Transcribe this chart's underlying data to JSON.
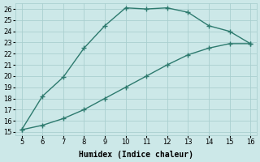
{
  "upper_x": [
    5,
    6,
    7,
    8,
    9,
    10,
    11,
    12,
    13,
    14,
    15,
    16
  ],
  "upper_y": [
    15.2,
    18.2,
    19.9,
    22.5,
    24.5,
    26.1,
    26.0,
    26.1,
    25.7,
    24.5,
    24.0,
    22.9
  ],
  "lower_x": [
    5,
    6,
    7,
    8,
    9,
    10,
    11,
    12,
    13,
    14,
    15,
    16
  ],
  "lower_y": [
    15.2,
    15.6,
    16.2,
    17.0,
    18.0,
    19.0,
    20.0,
    21.0,
    21.9,
    22.5,
    22.9,
    22.9
  ],
  "line_color": "#2d7a6e",
  "bg_color": "#cce8e8",
  "grid_color": "#aacfcf",
  "xlabel": "Humidex (Indice chaleur)",
  "xlim": [
    4.7,
    16.3
  ],
  "ylim": [
    14.7,
    26.5
  ],
  "xticks": [
    5,
    6,
    7,
    8,
    9,
    10,
    11,
    12,
    13,
    14,
    15,
    16
  ],
  "yticks": [
    15,
    16,
    17,
    18,
    19,
    20,
    21,
    22,
    23,
    24,
    25,
    26
  ],
  "marker": "+",
  "markersize": 4,
  "linewidth": 1.0,
  "fontsize_label": 7,
  "fontsize_tick": 6
}
